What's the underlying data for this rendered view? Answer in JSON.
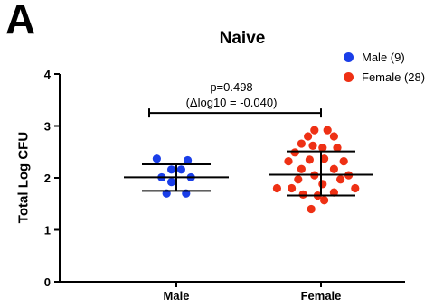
{
  "panel_label": "A",
  "chart_data": {
    "type": "scatter",
    "title": "Naive",
    "xlabel": "",
    "ylabel": "Total Log CFU",
    "ylim": [
      0,
      4
    ],
    "yticks": [
      "0",
      "1",
      "2",
      "3",
      "4"
    ],
    "categories": [
      "Male",
      "Female"
    ],
    "legend_position": "top-right",
    "series": [
      {
        "name": "Male (9)",
        "color": "#1a3ee8",
        "category": "Male",
        "mean": 2.01,
        "sd_upper": 2.26,
        "sd_lower": 1.75,
        "points": [
          {
            "x": -0.12,
            "y": 2.37
          },
          {
            "x": 0.07,
            "y": 2.34
          },
          {
            "x": -0.03,
            "y": 2.16
          },
          {
            "x": 0.03,
            "y": 2.16
          },
          {
            "x": -0.09,
            "y": 2.01
          },
          {
            "x": 0.09,
            "y": 2.01
          },
          {
            "x": -0.03,
            "y": 1.92
          },
          {
            "x": -0.06,
            "y": 1.7
          },
          {
            "x": 0.06,
            "y": 1.7
          }
        ]
      },
      {
        "name": "Female (28)",
        "color": "#ee3014",
        "category": "Female",
        "mean": 2.06,
        "sd_upper": 2.51,
        "sd_lower": 1.66,
        "points": [
          {
            "x": -0.04,
            "y": 2.92
          },
          {
            "x": 0.04,
            "y": 2.92
          },
          {
            "x": -0.08,
            "y": 2.8
          },
          {
            "x": 0.08,
            "y": 2.8
          },
          {
            "x": -0.12,
            "y": 2.66
          },
          {
            "x": -0.05,
            "y": 2.62
          },
          {
            "x": 0.01,
            "y": 2.58
          },
          {
            "x": 0.1,
            "y": 2.58
          },
          {
            "x": -0.16,
            "y": 2.49
          },
          {
            "x": -0.2,
            "y": 2.32
          },
          {
            "x": -0.07,
            "y": 2.35
          },
          {
            "x": 0.02,
            "y": 2.37
          },
          {
            "x": 0.14,
            "y": 2.32
          },
          {
            "x": -0.12,
            "y": 2.17
          },
          {
            "x": 0.08,
            "y": 2.17
          },
          {
            "x": -0.04,
            "y": 2.05
          },
          {
            "x": 0.17,
            "y": 2.05
          },
          {
            "x": -0.14,
            "y": 1.97
          },
          {
            "x": 0.12,
            "y": 1.97
          },
          {
            "x": -0.27,
            "y": 1.8
          },
          {
            "x": -0.18,
            "y": 1.8
          },
          {
            "x": 0.01,
            "y": 1.88
          },
          {
            "x": 0.21,
            "y": 1.8
          },
          {
            "x": -0.11,
            "y": 1.68
          },
          {
            "x": -0.02,
            "y": 1.66
          },
          {
            "x": 0.08,
            "y": 1.72
          },
          {
            "x": -0.06,
            "y": 1.4
          },
          {
            "x": 0.02,
            "y": 1.57
          }
        ]
      }
    ],
    "annotation": {
      "p_value": "p=0.498",
      "delta": "(Δlog10 = -0.040)",
      "bracket_y": 3.25
    }
  }
}
